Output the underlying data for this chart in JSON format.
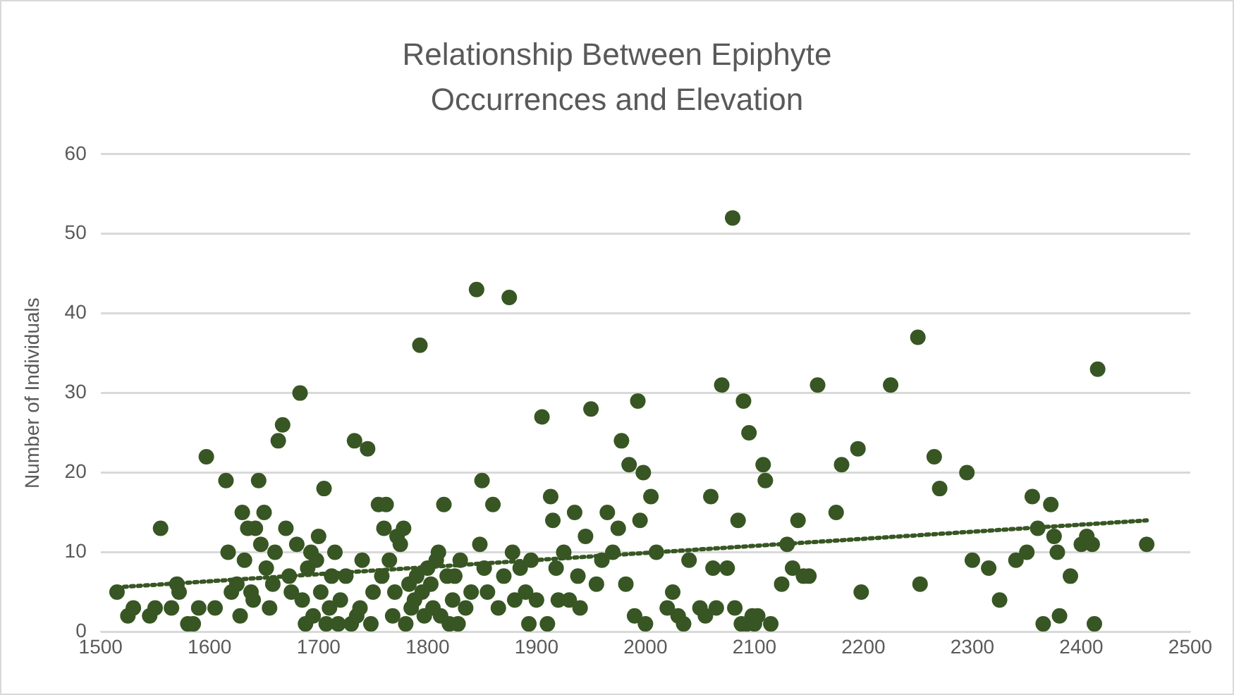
{
  "chart_data": {
    "type": "scatter",
    "title": "Relationship Between Epiphyte Occurrences and Elevation",
    "ylabel": "Number of Individuals",
    "xlim": [
      1500,
      2500
    ],
    "xticks": [
      1500,
      1600,
      1700,
      1800,
      1900,
      2000,
      2100,
      2200,
      2300,
      2400,
      2500
    ],
    "ylim": [
      0,
      60
    ],
    "yticks": [
      0,
      10,
      20,
      30,
      40,
      50,
      60
    ],
    "grid": "y",
    "legend": false,
    "marker": "circle",
    "series": [
      {
        "color": "#375623",
        "x": [
          1515,
          1525,
          1530,
          1545,
          1550,
          1555,
          1565,
          1570,
          1572,
          1580,
          1585,
          1590,
          1597,
          1605,
          1615,
          1617,
          1620,
          1625,
          1628,
          1630,
          1632,
          1635,
          1638,
          1640,
          1642,
          1645,
          1647,
          1650,
          1652,
          1655,
          1658,
          1660,
          1663,
          1667,
          1670,
          1673,
          1675,
          1680,
          1683,
          1685,
          1688,
          1690,
          1693,
          1695,
          1698,
          1700,
          1702,
          1705,
          1707,
          1710,
          1712,
          1715,
          1718,
          1720,
          1725,
          1730,
          1733,
          1735,
          1738,
          1740,
          1745,
          1748,
          1750,
          1755,
          1758,
          1760,
          1762,
          1765,
          1768,
          1770,
          1772,
          1775,
          1778,
          1780,
          1783,
          1785,
          1788,
          1790,
          1793,
          1795,
          1797,
          1800,
          1803,
          1805,
          1808,
          1810,
          1812,
          1815,
          1818,
          1820,
          1823,
          1825,
          1828,
          1830,
          1835,
          1840,
          1845,
          1848,
          1850,
          1852,
          1855,
          1860,
          1865,
          1870,
          1875,
          1878,
          1880,
          1885,
          1890,
          1893,
          1895,
          1900,
          1905,
          1910,
          1913,
          1915,
          1918,
          1920,
          1925,
          1930,
          1935,
          1938,
          1940,
          1945,
          1950,
          1955,
          1960,
          1965,
          1970,
          1975,
          1978,
          1982,
          1985,
          1990,
          1993,
          1995,
          1998,
          2000,
          2005,
          2010,
          2020,
          2025,
          2030,
          2035,
          2040,
          2050,
          2055,
          2060,
          2062,
          2065,
          2070,
          2075,
          2080,
          2082,
          2085,
          2088,
          2090,
          2093,
          2095,
          2098,
          2100,
          2103,
          2108,
          2110,
          2115,
          2125,
          2130,
          2135,
          2140,
          2145,
          2150,
          2158,
          2175,
          2180,
          2195,
          2198,
          2225,
          2250,
          2252,
          2265,
          2270,
          2295,
          2300,
          2315,
          2325,
          2340,
          2350,
          2355,
          2360,
          2365,
          2372,
          2375,
          2378,
          2380,
          2390,
          2400,
          2405,
          2410,
          2412,
          2415,
          2460
        ],
        "values": [
          5,
          2,
          3,
          2,
          3,
          13,
          3,
          6,
          5,
          1,
          1,
          3,
          22,
          3,
          19,
          10,
          5,
          6,
          2,
          15,
          9,
          13,
          5,
          4,
          13,
          19,
          11,
          15,
          8,
          3,
          6,
          10,
          24,
          26,
          13,
          7,
          5,
          11,
          30,
          4,
          1,
          8,
          10,
          2,
          9,
          12,
          5,
          18,
          1,
          3,
          7,
          10,
          1,
          4,
          7,
          1,
          24,
          2,
          3,
          9,
          23,
          1,
          5,
          16,
          7,
          13,
          16,
          9,
          2,
          5,
          12,
          11,
          13,
          1,
          6,
          3,
          4,
          7,
          36,
          5,
          2,
          8,
          6,
          3,
          9,
          10,
          2,
          16,
          7,
          1,
          4,
          7,
          1,
          9,
          3,
          5,
          43,
          11,
          19,
          8,
          5,
          16,
          3,
          7,
          42,
          10,
          4,
          8,
          5,
          1,
          9,
          4,
          27,
          1,
          17,
          14,
          8,
          4,
          10,
          4,
          15,
          7,
          3,
          12,
          28,
          6,
          9,
          15,
          10,
          13,
          24,
          6,
          21,
          2,
          29,
          14,
          20,
          1,
          17,
          10,
          3,
          5,
          2,
          1,
          9,
          3,
          2,
          17,
          8,
          3,
          31,
          8,
          52,
          3,
          14,
          1,
          29,
          1,
          25,
          2,
          1,
          2,
          21,
          19,
          1,
          6,
          11,
          8,
          14,
          7,
          7,
          31,
          15,
          21,
          23,
          5,
          31,
          37,
          6,
          22,
          18,
          20,
          9,
          8,
          4,
          9,
          10,
          17,
          13,
          1,
          16,
          12,
          10,
          2,
          7,
          11,
          12,
          11,
          1,
          33,
          11
        ]
      },
      {
        "type": "line",
        "color": "#375623",
        "line_style": "dotted",
        "marker": "none",
        "x": [
          1515,
          2460
        ],
        "values": [
          5.6,
          14
        ]
      }
    ]
  }
}
